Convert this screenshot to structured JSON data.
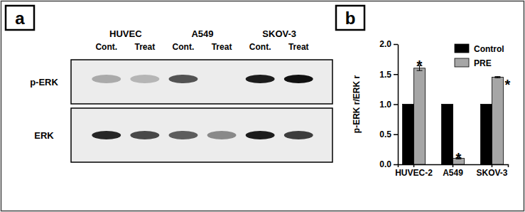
{
  "blot": {
    "label": "a",
    "cell_lines": [
      "HUVEC",
      "A549",
      "SKOV-3"
    ],
    "lanes": [
      "Cont.",
      "Treat"
    ],
    "rows": [
      "p-ERK",
      "ERK"
    ],
    "intensity": [
      [
        0.3,
        0.25,
        0.7,
        0,
        0.95,
        1.0
      ],
      [
        0.9,
        0.75,
        0.65,
        0.45,
        0.95,
        0.8
      ]
    ]
  },
  "chart_data": {
    "type": "bar",
    "title": "b",
    "y_label": "p-ERK r/ERK r",
    "categories": [
      "HUVEC-2",
      "A549",
      "SKOV-3"
    ],
    "series": [
      {
        "name": "Control",
        "color": "#000000",
        "values": [
          1,
          1,
          1
        ]
      },
      {
        "name": "PRE",
        "color": "#a6a6a6",
        "values": [
          1.6,
          0.1,
          1.45
        ],
        "errors": [
          0.04,
          0.01,
          0.01
        ]
      }
    ],
    "annotations": [
      "*",
      "*",
      "*"
    ],
    "ylim": [
      0,
      2
    ],
    "yticks": [
      {
        "value": 0,
        "label": "0.0"
      },
      {
        "value": 0.5,
        "label": "0.5"
      },
      {
        "value": 1,
        "label": "1.0"
      },
      {
        "value": 1.5,
        "label": "1.5"
      },
      {
        "value": 2,
        "label": "2.0"
      }
    ],
    "legend": "top-right"
  }
}
